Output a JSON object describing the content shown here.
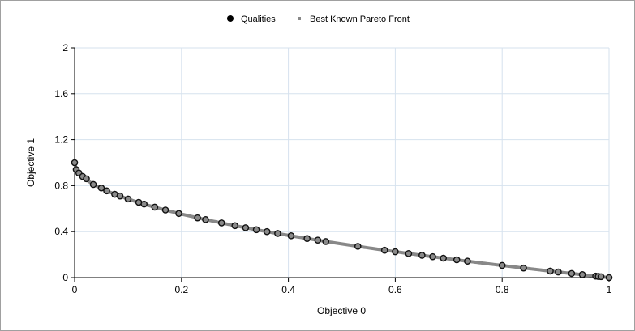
{
  "chart_data": {
    "type": "scatter",
    "xlabel": "Objective 0",
    "ylabel": "Objective 1",
    "xlim": [
      0,
      1
    ],
    "ylim": [
      0,
      2
    ],
    "xticks": [
      "0",
      "0.2",
      "0.4",
      "0.6",
      "0.8",
      "1"
    ],
    "yticks": [
      "0",
      "0.4",
      "0.8",
      "1.2",
      "1.6",
      "2"
    ],
    "grid": true,
    "legend_position": "top-center",
    "series": [
      {
        "name": "Qualities",
        "kind": "points",
        "color": "#000000",
        "points": [
          [
            0,
            1.0
          ],
          [
            0.003,
            0.94
          ],
          [
            0.008,
            0.91
          ],
          [
            0.015,
            0.88
          ],
          [
            0.022,
            0.86
          ],
          [
            0.035,
            0.81
          ],
          [
            0.05,
            0.78
          ],
          [
            0.06,
            0.755
          ],
          [
            0.075,
            0.725
          ],
          [
            0.085,
            0.71
          ],
          [
            0.1,
            0.684
          ],
          [
            0.12,
            0.655
          ],
          [
            0.13,
            0.64
          ],
          [
            0.15,
            0.613
          ],
          [
            0.17,
            0.588
          ],
          [
            0.195,
            0.558
          ],
          [
            0.23,
            0.52
          ],
          [
            0.245,
            0.505
          ],
          [
            0.275,
            0.476
          ],
          [
            0.3,
            0.452
          ],
          [
            0.32,
            0.434
          ],
          [
            0.34,
            0.417
          ],
          [
            0.36,
            0.4
          ],
          [
            0.38,
            0.384
          ],
          [
            0.405,
            0.364
          ],
          [
            0.435,
            0.34
          ],
          [
            0.455,
            0.326
          ],
          [
            0.47,
            0.314
          ],
          [
            0.53,
            0.272
          ],
          [
            0.58,
            0.238
          ],
          [
            0.6,
            0.225
          ],
          [
            0.625,
            0.209
          ],
          [
            0.65,
            0.194
          ],
          [
            0.67,
            0.182
          ],
          [
            0.69,
            0.169
          ],
          [
            0.715,
            0.155
          ],
          [
            0.735,
            0.143
          ],
          [
            0.8,
            0.106
          ],
          [
            0.84,
            0.083
          ],
          [
            0.89,
            0.057
          ],
          [
            0.905,
            0.049
          ],
          [
            0.93,
            0.036
          ],
          [
            0.95,
            0.026
          ],
          [
            0.975,
            0.013
          ],
          [
            0.98,
            0.01
          ],
          [
            0.985,
            0.008
          ],
          [
            1.0,
            0.0
          ]
        ]
      },
      {
        "name": "Best Known Pareto Front",
        "kind": "curve",
        "color": "#888888",
        "formula": "y = 1 - sqrt(x)"
      }
    ]
  }
}
